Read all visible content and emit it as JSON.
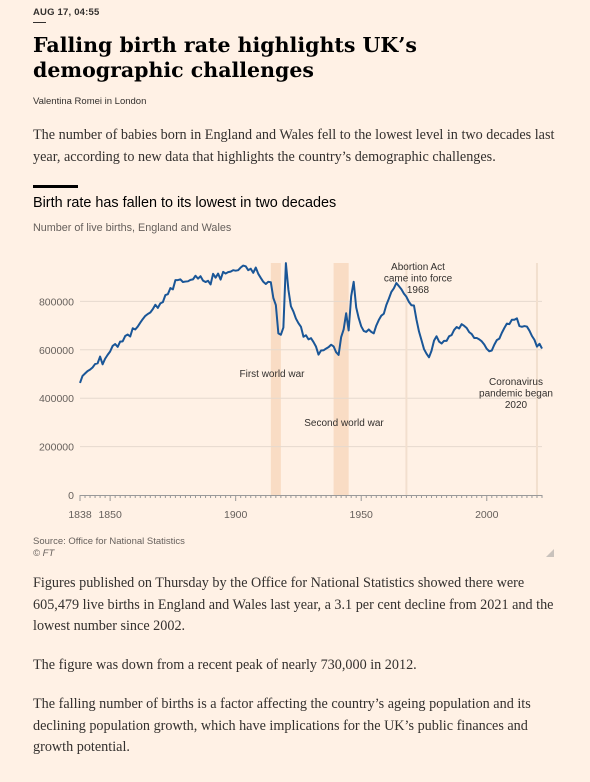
{
  "article": {
    "timestamp": "AUG 17, 04:55",
    "headline": "Falling birth rate highlights UK’s demographic challenges",
    "byline": "Valentina Romei in London",
    "standfirst": "The number of babies born in England and Wales fell to the lowest level in two decades last year, according to new data that highlights the country’s demographic challenges.",
    "paragraphs": [
      "Figures published on Thursday by the Office for National Statistics showed there were 605,479 live births in England and Wales last year, a 3.1 per cent decline from 2021 and the lowest number since 2002.",
      "The figure was down from a recent peak of nearly 730,000 in 2012.",
      "The falling number of births is a factor affecting the country’s ageing population and its declining population growth, which have implications for the UK’s public finances and growth potential."
    ]
  },
  "chart_data": {
    "type": "line",
    "title": "Birth rate has fallen to its lowest in two decades",
    "subtitle": "Number of live births, England and Wales",
    "source": "Source: Office for National Statistics",
    "copyright": "© FT",
    "xlim": [
      1838,
      2022
    ],
    "ylim": [
      0,
      1000000
    ],
    "x_ticks": [
      1838,
      1850,
      1900,
      1950,
      2000
    ],
    "y_ticks": [
      0,
      200000,
      400000,
      600000,
      800000
    ],
    "y_tick_labels": [
      "0",
      "200000",
      "400000",
      "600000",
      "800000"
    ],
    "grid": true,
    "colors": {
      "line": "#1a5697",
      "war_band": "#f9dcc4",
      "marker_line": "#f2dfce",
      "grid": "#e6d9ce",
      "axis": "#999"
    },
    "shaded_periods": [
      {
        "label": "First world war",
        "range": [
          1914,
          1918
        ]
      },
      {
        "label": "Second world war",
        "range": [
          1939,
          1945
        ]
      }
    ],
    "event_lines": [
      {
        "label": [
          "Abortion Act",
          "came into force",
          "1968"
        ],
        "year": 1968
      },
      {
        "label": [
          "Coronavirus",
          "pandemic began",
          "2020"
        ],
        "year": 2020
      }
    ],
    "series": [
      {
        "x": [
          1838,
          1839,
          1840,
          1841,
          1842,
          1843,
          1844,
          1845,
          1846,
          1847,
          1848,
          1849,
          1850,
          1851,
          1852,
          1853,
          1854,
          1855,
          1856,
          1857,
          1858,
          1859,
          1860,
          1861,
          1862,
          1863,
          1864,
          1865,
          1866,
          1867,
          1868,
          1869,
          1870,
          1871,
          1872,
          1873,
          1874,
          1875,
          1876,
          1877,
          1878,
          1879,
          1880,
          1881,
          1882,
          1883,
          1884,
          1885,
          1886,
          1887,
          1888,
          1889,
          1890,
          1891,
          1892,
          1893,
          1894,
          1895,
          1896,
          1897,
          1898,
          1899,
          1900,
          1901,
          1902,
          1903,
          1904,
          1905,
          1906,
          1907,
          1908,
          1909,
          1910,
          1911,
          1912,
          1913,
          1914,
          1915,
          1916,
          1917,
          1918,
          1919,
          1920,
          1921,
          1922,
          1923,
          1924,
          1925,
          1926,
          1927,
          1928,
          1929,
          1930,
          1931,
          1932,
          1933,
          1934,
          1935,
          1936,
          1937,
          1938,
          1939,
          1940,
          1941,
          1942,
          1943,
          1944,
          1945,
          1946,
          1947,
          1948,
          1949,
          1950,
          1951,
          1952,
          1953,
          1954,
          1955,
          1956,
          1957,
          1958,
          1959,
          1960,
          1961,
          1962,
          1963,
          1964,
          1965,
          1966,
          1967,
          1968,
          1969,
          1970,
          1971,
          1972,
          1973,
          1974,
          1975,
          1976,
          1977,
          1978,
          1979,
          1980,
          1981,
          1982,
          1983,
          1984,
          1985,
          1986,
          1987,
          1988,
          1989,
          1990,
          1991,
          1992,
          1993,
          1994,
          1995,
          1996,
          1997,
          1998,
          1999,
          2000,
          2001,
          2002,
          2003,
          2004,
          2005,
          2006,
          2007,
          2008,
          2009,
          2010,
          2011,
          2012,
          2013,
          2014,
          2015,
          2016,
          2017,
          2018,
          2019,
          2020,
          2021,
          2022
        ],
        "y": [
          463000,
          492000,
          502000,
          512000,
          518000,
          527000,
          541000,
          544000,
          572000,
          540000,
          563000,
          579000,
          593000,
          616000,
          624000,
          612000,
          634000,
          635000,
          657000,
          663000,
          655000,
          689000,
          684000,
          696000,
          712000,
          727000,
          740000,
          748000,
          754000,
          768000,
          786000,
          773000,
          792000,
          797000,
          826000,
          830000,
          855000,
          850000,
          888000,
          888000,
          891000,
          880000,
          882000,
          883000,
          889000,
          891000,
          906000,
          894000,
          904000,
          886000,
          880000,
          885000,
          870000,
          914000,
          898000,
          915000,
          890000,
          922000,
          915000,
          921000,
          923000,
          929000,
          927000,
          929000,
          940000,
          948000,
          945000,
          929000,
          935000,
          918000,
          940000,
          914000,
          897000,
          881000,
          872000,
          881000,
          879000,
          814000,
          785000,
          668000,
          662000,
          692000,
          958000,
          848000,
          780000,
          758000,
          729000,
          710000,
          695000,
          654000,
          660000,
          643000,
          648000,
          632000,
          613000,
          580000,
          597000,
          598000,
          605000,
          611000,
          621000,
          614000,
          590000,
          579000,
          652000,
          684000,
          751000,
          680000,
          821000,
          881000,
          775000,
          731000,
          697000,
          678000,
          674000,
          684000,
          674000,
          668000,
          700000,
          723000,
          741000,
          749000,
          785000,
          811000,
          839000,
          854000,
          876000,
          863000,
          850000,
          832000,
          819000,
          798000,
          784000,
          783000,
          725000,
          676000,
          640000,
          603000,
          584000,
          569000,
          596000,
          638000,
          656000,
          634000,
          626000,
          637000,
          637000,
          656000,
          661000,
          682000,
          694000,
          688000,
          706000,
          699000,
          690000,
          673000,
          665000,
          649000,
          649000,
          643000,
          635000,
          622000,
          604000,
          594000,
          597000,
          621000,
          640000,
          646000,
          670000,
          690000,
          708000,
          706000,
          724000,
          724000,
          730000,
          698000,
          695000,
          698000,
          696000,
          679000,
          657000,
          641000,
          613000,
          625000,
          605000
        ]
      }
    ]
  }
}
